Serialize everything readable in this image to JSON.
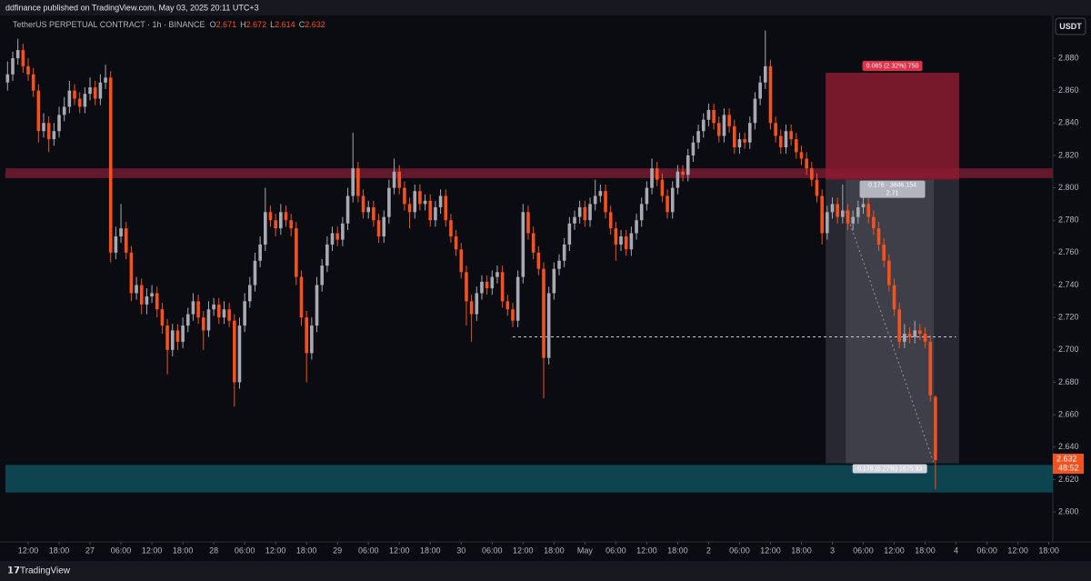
{
  "header": {
    "publisher": "ddfinance published on TradingView.com, May 03, 2025 20:11 UTC+3",
    "symbol": "TetherUS PERPETUAL CONTRACT · 1h · BINANCE",
    "ohlc_labels": [
      "O",
      "H",
      "L",
      "C"
    ],
    "currency": "USDT",
    "brand": "TradingView"
  },
  "chart_data": {
    "type": "candlestick",
    "up_color": "#a7aab3",
    "down_color": "#f4511e",
    "countdown": "48:52",
    "xlim": [
      -0.41,
      202.77
    ],
    "ylim": [
      2.5815,
      2.9058
    ],
    "xticks": [
      {
        "value": 4,
        "label": "12:00"
      },
      {
        "value": 10,
        "label": "18:00"
      },
      {
        "value": 16,
        "label": "27"
      },
      {
        "value": 22,
        "label": "06:00"
      },
      {
        "value": 28,
        "label": "12:00"
      },
      {
        "value": 34,
        "label": "18:00"
      },
      {
        "value": 40,
        "label": "28"
      },
      {
        "value": 46,
        "label": "06:00"
      },
      {
        "value": 52,
        "label": "12:00"
      },
      {
        "value": 58,
        "label": "18:00"
      },
      {
        "value": 64,
        "label": "29"
      },
      {
        "value": 70,
        "label": "06:00"
      },
      {
        "value": 76,
        "label": "12:00"
      },
      {
        "value": 82,
        "label": "18:00"
      },
      {
        "value": 88,
        "label": "30"
      },
      {
        "value": 94,
        "label": "06:00"
      },
      {
        "value": 100,
        "label": "12:00"
      },
      {
        "value": 106,
        "label": "18:00"
      },
      {
        "value": 112,
        "label": "May"
      },
      {
        "value": 118,
        "label": "06:00"
      },
      {
        "value": 124,
        "label": "12:00"
      },
      {
        "value": 130,
        "label": "18:00"
      },
      {
        "value": 136,
        "label": "2"
      },
      {
        "value": 142,
        "label": "06:00"
      },
      {
        "value": 148,
        "label": "12:00"
      },
      {
        "value": 154,
        "label": "18:00"
      },
      {
        "value": 160,
        "label": "3"
      },
      {
        "value": 166,
        "label": "06:00"
      },
      {
        "value": 172,
        "label": "12:00"
      },
      {
        "value": 178,
        "label": "18:00"
      },
      {
        "value": 184,
        "label": "4"
      },
      {
        "value": 190,
        "label": "06:00"
      },
      {
        "value": 196,
        "label": "12:00"
      },
      {
        "value": 202,
        "label": "18:00"
      }
    ],
    "yticks": [
      {
        "value": 2.6,
        "label": "2.600"
      },
      {
        "value": 2.62,
        "label": "2.620"
      },
      {
        "value": 2.64,
        "label": "2.640"
      },
      {
        "value": 2.66,
        "label": "2.660"
      },
      {
        "value": 2.68,
        "label": "2.680"
      },
      {
        "value": 2.7,
        "label": "2.700"
      },
      {
        "value": 2.72,
        "label": "2.720"
      },
      {
        "value": 2.74,
        "label": "2.740"
      },
      {
        "value": 2.76,
        "label": "2.760"
      },
      {
        "value": 2.78,
        "label": "2.780"
      },
      {
        "value": 2.8,
        "label": "2.800"
      },
      {
        "value": 2.82,
        "label": "2.820"
      },
      {
        "value": 2.84,
        "label": "2.840"
      },
      {
        "value": 2.86,
        "label": "2.860"
      },
      {
        "value": 2.88,
        "label": "2.880"
      }
    ],
    "bands": [
      {
        "from": 2.806,
        "to": 2.812,
        "color": "#6e1a30"
      },
      {
        "from": 2.612,
        "to": 2.629,
        "color": "#0d4a58"
      }
    ],
    "position": {
      "entry": 2.805,
      "stop": 2.871,
      "target": 2.63,
      "start": 158.7,
      "end": 184.6,
      "fill_start": 162.6,
      "fill_end": 179.7,
      "stop_label": "0.065 (2.32%) 750",
      "entry_label": "0.176 · 3846.154",
      "entry_sub": "2.71",
      "target_label": "0.176 (6.27%) 1675.93"
    },
    "dashed_level": {
      "value": 2.708,
      "from": 98,
      "to": 184
    },
    "candles": [
      [
        2.865,
        2.878,
        2.86,
        2.87
      ],
      [
        2.87,
        2.884,
        2.866,
        2.88
      ],
      [
        2.88,
        2.892,
        2.876,
        2.885
      ],
      [
        2.885,
        2.889,
        2.871,
        2.875
      ],
      [
        2.875,
        2.88,
        2.866,
        2.87
      ],
      [
        2.87,
        2.874,
        2.856,
        2.86
      ],
      [
        2.86,
        2.864,
        2.828,
        2.835
      ],
      [
        2.835,
        2.846,
        2.831,
        2.84
      ],
      [
        2.84,
        2.844,
        2.822,
        2.83
      ],
      [
        2.83,
        2.84,
        2.826,
        2.835
      ],
      [
        2.835,
        2.85,
        2.831,
        2.845
      ],
      [
        2.845,
        2.856,
        2.841,
        2.85
      ],
      [
        2.85,
        2.866,
        2.846,
        2.86
      ],
      [
        2.86,
        2.864,
        2.851,
        2.855
      ],
      [
        2.855,
        2.859,
        2.846,
        2.85
      ],
      [
        2.85,
        2.862,
        2.846,
        2.858
      ],
      [
        2.858,
        2.868,
        2.854,
        2.862
      ],
      [
        2.862,
        2.866,
        2.851,
        2.855
      ],
      [
        2.855,
        2.87,
        2.851,
        2.865
      ],
      [
        2.865,
        2.876,
        2.861,
        2.868
      ],
      [
        2.868,
        2.872,
        2.754,
        2.76
      ],
      [
        2.76,
        2.776,
        2.756,
        2.77
      ],
      [
        2.77,
        2.79,
        2.766,
        2.775
      ],
      [
        2.775,
        2.779,
        2.756,
        2.76
      ],
      [
        2.76,
        2.764,
        2.73,
        2.735
      ],
      [
        2.735,
        2.745,
        2.731,
        2.74
      ],
      [
        2.74,
        2.744,
        2.722,
        2.728
      ],
      [
        2.728,
        2.738,
        2.722,
        2.733
      ],
      [
        2.733,
        2.74,
        2.729,
        2.735
      ],
      [
        2.735,
        2.739,
        2.72,
        2.725
      ],
      [
        2.725,
        2.729,
        2.71,
        2.715
      ],
      [
        2.715,
        2.719,
        2.685,
        2.7
      ],
      [
        2.7,
        2.716,
        2.696,
        2.712
      ],
      [
        2.712,
        2.716,
        2.7,
        2.705
      ],
      [
        2.705,
        2.72,
        2.701,
        2.715
      ],
      [
        2.715,
        2.726,
        2.711,
        2.722
      ],
      [
        2.722,
        2.735,
        2.718,
        2.73
      ],
      [
        2.73,
        2.734,
        2.716,
        2.72
      ],
      [
        2.72,
        2.724,
        2.7,
        2.712
      ],
      [
        2.712,
        2.73,
        2.708,
        2.725
      ],
      [
        2.725,
        2.732,
        2.721,
        2.728
      ],
      [
        2.728,
        2.732,
        2.716,
        2.72
      ],
      [
        2.72,
        2.73,
        2.716,
        2.725
      ],
      [
        2.725,
        2.729,
        2.714,
        2.718
      ],
      [
        2.718,
        2.722,
        2.665,
        2.68
      ],
      [
        2.68,
        2.72,
        2.676,
        2.715
      ],
      [
        2.715,
        2.735,
        2.711,
        2.73
      ],
      [
        2.73,
        2.745,
        2.726,
        2.74
      ],
      [
        2.74,
        2.76,
        2.736,
        2.755
      ],
      [
        2.755,
        2.77,
        2.751,
        2.765
      ],
      [
        2.765,
        2.8,
        2.761,
        2.785
      ],
      [
        2.785,
        2.789,
        2.776,
        2.78
      ],
      [
        2.78,
        2.784,
        2.77,
        2.775
      ],
      [
        2.775,
        2.79,
        2.771,
        2.785
      ],
      [
        2.785,
        2.789,
        2.776,
        2.78
      ],
      [
        2.78,
        2.784,
        2.77,
        2.775
      ],
      [
        2.775,
        2.779,
        2.74,
        2.745
      ],
      [
        2.745,
        2.749,
        2.715,
        2.72
      ],
      [
        2.72,
        2.724,
        2.68,
        2.698
      ],
      [
        2.698,
        2.72,
        2.694,
        2.715
      ],
      [
        2.715,
        2.745,
        2.711,
        2.74
      ],
      [
        2.74,
        2.756,
        2.736,
        2.752
      ],
      [
        2.752,
        2.77,
        2.748,
        2.765
      ],
      [
        2.765,
        2.776,
        2.761,
        2.772
      ],
      [
        2.772,
        2.776,
        2.764,
        2.768
      ],
      [
        2.768,
        2.782,
        2.764,
        2.778
      ],
      [
        2.778,
        2.8,
        2.774,
        2.795
      ],
      [
        2.795,
        2.834,
        2.791,
        2.812
      ],
      [
        2.812,
        2.816,
        2.791,
        2.795
      ],
      [
        2.795,
        2.799,
        2.781,
        2.785
      ],
      [
        2.785,
        2.792,
        2.781,
        2.788
      ],
      [
        2.788,
        2.792,
        2.776,
        2.78
      ],
      [
        2.78,
        2.784,
        2.766,
        2.77
      ],
      [
        2.77,
        2.786,
        2.766,
        2.782
      ],
      [
        2.782,
        2.805,
        2.778,
        2.8
      ],
      [
        2.8,
        2.818,
        2.796,
        2.81
      ],
      [
        2.81,
        2.814,
        2.796,
        2.8
      ],
      [
        2.8,
        2.804,
        2.786,
        2.79
      ],
      [
        2.79,
        2.794,
        2.775,
        2.785
      ],
      [
        2.785,
        2.802,
        2.781,
        2.798
      ],
      [
        2.798,
        2.802,
        2.786,
        2.79
      ],
      [
        2.79,
        2.796,
        2.786,
        2.792
      ],
      [
        2.792,
        2.796,
        2.776,
        2.78
      ],
      [
        2.78,
        2.792,
        2.776,
        2.788
      ],
      [
        2.788,
        2.799,
        2.784,
        2.795
      ],
      [
        2.795,
        2.799,
        2.776,
        2.78
      ],
      [
        2.78,
        2.784,
        2.766,
        2.77
      ],
      [
        2.77,
        2.774,
        2.758,
        2.762
      ],
      [
        2.762,
        2.766,
        2.744,
        2.748
      ],
      [
        2.748,
        2.752,
        2.715,
        2.73
      ],
      [
        2.73,
        2.734,
        2.705,
        2.722
      ],
      [
        2.722,
        2.739,
        2.718,
        2.735
      ],
      [
        2.735,
        2.746,
        2.731,
        2.742
      ],
      [
        2.742,
        2.746,
        2.734,
        2.738
      ],
      [
        2.738,
        2.749,
        2.734,
        2.745
      ],
      [
        2.745,
        2.752,
        2.741,
        2.748
      ],
      [
        2.748,
        2.752,
        2.726,
        2.73
      ],
      [
        2.73,
        2.734,
        2.721,
        2.725
      ],
      [
        2.725,
        2.729,
        2.714,
        2.718
      ],
      [
        2.718,
        2.749,
        2.714,
        2.745
      ],
      [
        2.745,
        2.79,
        2.741,
        2.785
      ],
      [
        2.785,
        2.789,
        2.768,
        2.772
      ],
      [
        2.772,
        2.776,
        2.756,
        2.76
      ],
      [
        2.76,
        2.764,
        2.746,
        2.75
      ],
      [
        2.75,
        2.754,
        2.67,
        2.695
      ],
      [
        2.695,
        2.739,
        2.691,
        2.735
      ],
      [
        2.735,
        2.754,
        2.731,
        2.75
      ],
      [
        2.75,
        2.759,
        2.746,
        2.755
      ],
      [
        2.755,
        2.769,
        2.751,
        2.765
      ],
      [
        2.765,
        2.782,
        2.761,
        2.778
      ],
      [
        2.778,
        2.786,
        2.774,
        2.782
      ],
      [
        2.782,
        2.792,
        2.778,
        2.788
      ],
      [
        2.788,
        2.792,
        2.776,
        2.78
      ],
      [
        2.78,
        2.794,
        2.776,
        2.79
      ],
      [
        2.79,
        2.805,
        2.786,
        2.795
      ],
      [
        2.795,
        2.802,
        2.791,
        2.798
      ],
      [
        2.798,
        2.802,
        2.781,
        2.785
      ],
      [
        2.785,
        2.789,
        2.771,
        2.775
      ],
      [
        2.775,
        2.779,
        2.755,
        2.765
      ],
      [
        2.765,
        2.774,
        2.761,
        2.77
      ],
      [
        2.77,
        2.774,
        2.758,
        2.762
      ],
      [
        2.762,
        2.776,
        2.758,
        2.772
      ],
      [
        2.772,
        2.784,
        2.768,
        2.78
      ],
      [
        2.78,
        2.794,
        2.776,
        2.79
      ],
      [
        2.79,
        2.804,
        2.786,
        2.8
      ],
      [
        2.8,
        2.818,
        2.796,
        2.812
      ],
      [
        2.812,
        2.816,
        2.801,
        2.805
      ],
      [
        2.805,
        2.809,
        2.791,
        2.795
      ],
      [
        2.795,
        2.799,
        2.781,
        2.785
      ],
      [
        2.785,
        2.804,
        2.781,
        2.8
      ],
      [
        2.8,
        2.814,
        2.796,
        2.81
      ],
      [
        2.81,
        2.814,
        2.804,
        2.808
      ],
      [
        2.808,
        2.824,
        2.804,
        2.82
      ],
      [
        2.82,
        2.832,
        2.816,
        2.828
      ],
      [
        2.828,
        2.839,
        2.824,
        2.835
      ],
      [
        2.835,
        2.846,
        2.831,
        2.842
      ],
      [
        2.842,
        2.852,
        2.838,
        2.848
      ],
      [
        2.848,
        2.852,
        2.836,
        2.84
      ],
      [
        2.84,
        2.844,
        2.828,
        2.832
      ],
      [
        2.832,
        2.849,
        2.828,
        2.845
      ],
      [
        2.845,
        2.849,
        2.834,
        2.838
      ],
      [
        2.838,
        2.842,
        2.821,
        2.825
      ],
      [
        2.825,
        2.834,
        2.821,
        2.83
      ],
      [
        2.83,
        2.834,
        2.824,
        2.828
      ],
      [
        2.828,
        2.844,
        2.824,
        2.84
      ],
      [
        2.84,
        2.859,
        2.836,
        2.855
      ],
      [
        2.855,
        2.869,
        2.851,
        2.865
      ],
      [
        2.865,
        2.897,
        2.861,
        2.875
      ],
      [
        2.875,
        2.879,
        2.836,
        2.84
      ],
      [
        2.84,
        2.844,
        2.828,
        2.832
      ],
      [
        2.832,
        2.836,
        2.821,
        2.825
      ],
      [
        2.825,
        2.839,
        2.821,
        2.835
      ],
      [
        2.835,
        2.839,
        2.826,
        2.83
      ],
      [
        2.83,
        2.834,
        2.818,
        2.822
      ],
      [
        2.822,
        2.826,
        2.814,
        2.818
      ],
      [
        2.818,
        2.822,
        2.808,
        2.812
      ],
      [
        2.812,
        2.816,
        2.801,
        2.805
      ],
      [
        2.805,
        2.809,
        2.791,
        2.795
      ],
      [
        2.795,
        2.799,
        2.765,
        2.772
      ],
      [
        2.772,
        2.789,
        2.768,
        2.785
      ],
      [
        2.785,
        2.794,
        2.781,
        2.79
      ],
      [
        2.79,
        2.794,
        2.778,
        2.782
      ],
      [
        2.782,
        2.802,
        2.778,
        2.786
      ],
      [
        2.786,
        2.79,
        2.774,
        2.778
      ],
      [
        2.778,
        2.786,
        2.774,
        2.782
      ],
      [
        2.782,
        2.792,
        2.778,
        2.788
      ],
      [
        2.788,
        2.794,
        2.784,
        2.79
      ],
      [
        2.79,
        2.794,
        2.778,
        2.782
      ],
      [
        2.782,
        2.786,
        2.771,
        2.775
      ],
      [
        2.775,
        2.779,
        2.761,
        2.765
      ],
      [
        2.765,
        2.769,
        2.751,
        2.755
      ],
      [
        2.755,
        2.759,
        2.736,
        2.74
      ],
      [
        2.74,
        2.744,
        2.721,
        2.725
      ],
      [
        2.725,
        2.729,
        2.701,
        2.705
      ],
      [
        2.705,
        2.716,
        2.701,
        2.71
      ],
      [
        2.71,
        2.714,
        2.704,
        2.708
      ],
      [
        2.708,
        2.718,
        2.704,
        2.712
      ],
      [
        2.712,
        2.716,
        2.706,
        2.71
      ],
      [
        2.71,
        2.714,
        2.701,
        2.705
      ],
      [
        2.705,
        2.709,
        2.668,
        2.672
      ],
      [
        2.671,
        2.672,
        2.614,
        2.632
      ]
    ]
  }
}
